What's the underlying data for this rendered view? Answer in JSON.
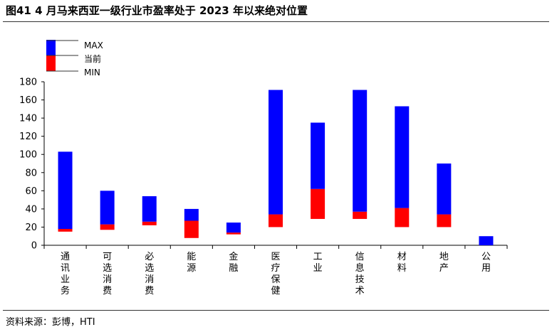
{
  "title": "图41 4 月马来西亚一级行业市盈率处于 2023 年以来绝对位置",
  "source": "资料来源：彭博，HTI",
  "colors": {
    "range": "#0000ff",
    "current": "#ff0000"
  },
  "chart_data": {
    "type": "bar",
    "subtype": "floating-range",
    "categories": [
      "通讯业务",
      "可选消费",
      "必选消费",
      "能源",
      "金融",
      "医疗保健",
      "工业",
      "信息技术",
      "材料",
      "地产",
      "公用"
    ],
    "series": [
      {
        "name": "MIN",
        "values": [
          15,
          17,
          22,
          8,
          12,
          20,
          29,
          29,
          20,
          20,
          0
        ]
      },
      {
        "name": "当前",
        "values": [
          18,
          23,
          26,
          27,
          14,
          34,
          62,
          37,
          41,
          34,
          0
        ]
      },
      {
        "name": "MAX",
        "values": [
          103,
          60,
          54,
          40,
          25,
          171,
          135,
          171,
          153,
          90,
          10
        ]
      }
    ],
    "ylim": [
      0,
      180
    ],
    "yticks": [
      0,
      20,
      40,
      60,
      80,
      100,
      120,
      140,
      160,
      180
    ],
    "legend": {
      "position": "top-left",
      "entries": [
        "MAX",
        "当前",
        "MIN"
      ]
    },
    "grid": false,
    "xlabel": "",
    "ylabel": ""
  }
}
